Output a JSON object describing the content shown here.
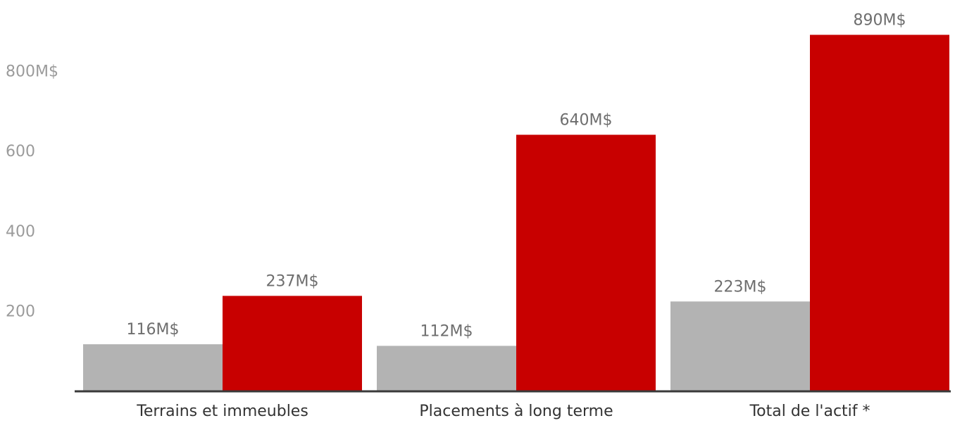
{
  "colors": {
    "series_1": "#b3b3b3",
    "series_2": "#c80000",
    "axis": "#3a3a3a",
    "tick_text": "#9b9b9b",
    "data_label_text": "#6e6e6e",
    "category_text": "#333333",
    "background": "#ffffff"
  },
  "chart_data": {
    "type": "bar",
    "title": "",
    "xlabel": "",
    "ylabel": "",
    "categories": [
      "Terrains et immeubles",
      "Placements à long terme",
      "Total de l'actif *"
    ],
    "series": [
      {
        "values": [
          116,
          112,
          223
        ],
        "labels": [
          "116M$",
          "112M$",
          "223M$"
        ]
      },
      {
        "values": [
          237,
          640,
          890
        ],
        "labels": [
          "237M$",
          "640M$",
          "890M$"
        ]
      }
    ],
    "ylim": [
      0,
      900
    ],
    "yticks": [
      {
        "value": 200,
        "label": "200"
      },
      {
        "value": 400,
        "label": "400"
      },
      {
        "value": 600,
        "label": "600"
      },
      {
        "value": 800,
        "label": "800M$"
      }
    ],
    "grid": false,
    "legend": "none"
  }
}
